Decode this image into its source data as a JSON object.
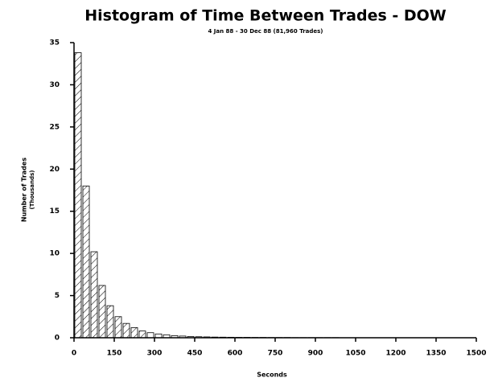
{
  "chart_data": {
    "type": "histogram",
    "title": "Histogram of Time Between Trades - DOW",
    "subtitle": "4 Jan 88 - 30 Dec 88 (81,960 Trades)",
    "xlabel": "Seconds",
    "ylabel": "Number of Trades",
    "ylabel_sub": "(Thousands)",
    "bins": [
      0,
      30,
      60,
      90,
      120,
      150,
      180,
      210,
      240,
      270,
      300,
      330,
      360,
      390,
      420,
      450,
      480,
      510,
      540,
      570,
      600,
      630,
      660,
      690,
      720,
      750,
      780,
      810,
      840,
      870,
      900,
      930,
      960,
      990,
      1020,
      1050,
      1080,
      1110,
      1140,
      1170,
      1200,
      1230,
      1260,
      1290,
      1320,
      1350,
      1380,
      1410,
      1440,
      1470,
      1500
    ],
    "values": [
      33.8,
      18,
      10.2,
      6.2,
      3.8,
      2.5,
      1.7,
      1.2,
      0.8,
      0.6,
      0.45,
      0.35,
      0.25,
      0.2,
      0.15,
      0.12,
      0.1,
      0.08,
      0.07,
      0.06,
      0.05,
      0.05,
      0.04,
      0.04,
      0.03,
      0.03,
      0.03,
      0.02,
      0.02,
      0.02,
      0.02,
      0.02,
      0.02,
      0.01,
      0.01,
      0.01,
      0.01,
      0.01,
      0.01,
      0.01,
      0.01,
      0.01,
      0.01,
      0.01,
      0.01,
      0.01,
      0.01,
      0.01,
      0.01,
      0.01
    ],
    "color": "#ffffff",
    "xlim": [
      0,
      1500
    ],
    "xticks": [
      0,
      150,
      300,
      450,
      600,
      750,
      900,
      1050,
      1200,
      1350,
      1500
    ],
    "ylim": [
      0,
      35
    ],
    "yticks": [
      0,
      5,
      10,
      15,
      20,
      25,
      30,
      35
    ]
  }
}
